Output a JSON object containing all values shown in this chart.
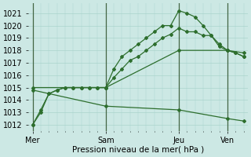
{
  "title": "",
  "xlabel": "Pression niveau de la mer( hPa )",
  "ylabel": "",
  "bg_color": "#cce8e4",
  "grid_color": "#aad4cc",
  "line_color": "#2d6e2d",
  "ylim": [
    1011.5,
    1021.8
  ],
  "yticks": [
    1012,
    1013,
    1014,
    1015,
    1016,
    1017,
    1018,
    1019,
    1020,
    1021
  ],
  "xtick_labels": [
    "Mer",
    "Sam",
    "Jeu",
    "Ven"
  ],
  "xtick_positions": [
    0,
    9,
    18,
    24
  ],
  "vline_positions": [
    0,
    9,
    18,
    24
  ],
  "total_points": 27,
  "series": [
    {
      "x": [
        0,
        1,
        2,
        3,
        4,
        5,
        6,
        7,
        8,
        9,
        10,
        11,
        12,
        13,
        14,
        15,
        16,
        17,
        18,
        19,
        20,
        21,
        22,
        23,
        24,
        25,
        26
      ],
      "y": [
        1012.0,
        1013.2,
        1014.5,
        1014.8,
        1015.0,
        1015.0,
        1015.0,
        1015.0,
        1015.0,
        1015.0,
        1016.5,
        1017.5,
        1018.0,
        1018.5,
        1019.0,
        1019.5,
        1020.0,
        1020.0,
        1021.2,
        1021.0,
        1020.7,
        1020.0,
        1019.2,
        1018.3,
        1018.0,
        1017.8,
        1017.5
      ]
    },
    {
      "x": [
        0,
        1,
        2,
        3,
        4,
        5,
        6,
        7,
        8,
        9,
        10,
        11,
        12,
        13,
        14,
        15,
        16,
        17,
        18,
        19,
        20,
        21,
        22,
        23,
        24,
        25,
        26
      ],
      "y": [
        1012.0,
        1013.0,
        1014.5,
        1014.8,
        1015.0,
        1015.0,
        1015.0,
        1015.0,
        1015.0,
        1015.0,
        1015.8,
        1016.5,
        1017.2,
        1017.5,
        1018.0,
        1018.5,
        1019.0,
        1019.3,
        1019.8,
        1019.5,
        1019.5,
        1019.2,
        1019.2,
        1018.5,
        1018.0,
        1017.8,
        1017.5
      ]
    },
    {
      "x": [
        0,
        9,
        18,
        24,
        26
      ],
      "y": [
        1015.0,
        1015.0,
        1018.0,
        1018.0,
        1017.8
      ]
    },
    {
      "x": [
        0,
        9,
        18,
        24,
        26
      ],
      "y": [
        1014.8,
        1013.5,
        1013.2,
        1012.5,
        1012.3
      ]
    }
  ]
}
